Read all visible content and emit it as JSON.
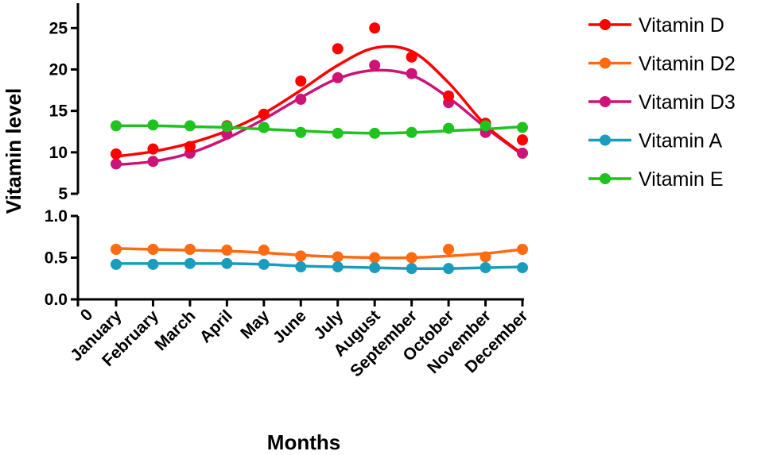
{
  "chart_data": {
    "type": "line",
    "title": "",
    "xlabel": "Months",
    "ylabel": "Vitamin level",
    "x_origin_label": "0",
    "categories": [
      "January",
      "February",
      "March",
      "April",
      "May",
      "June",
      "July",
      "August",
      "September",
      "October",
      "November",
      "December"
    ],
    "y_axis_segments": [
      {
        "name": "upper",
        "ylim": [
          5,
          28
        ],
        "ticks": [
          5,
          10,
          15,
          20,
          25
        ],
        "tick_labels": [
          "5",
          "10",
          "15",
          "20",
          "25"
        ]
      },
      {
        "name": "lower",
        "ylim": [
          0,
          1.0
        ],
        "ticks": [
          0,
          0.5,
          1.0
        ],
        "tick_labels": [
          "0.0",
          "0.5",
          "1.0"
        ]
      }
    ],
    "legend_position": "top-right",
    "series": [
      {
        "name": "Vitamin D",
        "color": "#ff0000",
        "segment": "upper",
        "values": [
          9.8,
          10.4,
          10.7,
          13.2,
          14.6,
          18.6,
          22.5,
          25.0,
          21.5,
          16.8,
          13.5,
          11.5
        ],
        "fit": [
          9.5,
          10.1,
          11.1,
          12.6,
          14.7,
          17.5,
          20.5,
          22.6,
          22.2,
          18.4,
          13.3,
          9.8
        ]
      },
      {
        "name": "Vitamin D2",
        "color": "#ff6a13",
        "segment": "lower",
        "values": [
          0.6,
          0.6,
          0.6,
          0.59,
          0.59,
          0.52,
          0.51,
          0.5,
          0.5,
          0.6,
          0.51,
          0.6
        ],
        "fit": [
          0.61,
          0.6,
          0.59,
          0.58,
          0.56,
          0.53,
          0.51,
          0.5,
          0.5,
          0.52,
          0.55,
          0.6
        ]
      },
      {
        "name": "Vitamin D3",
        "color": "#cc1377",
        "segment": "upper",
        "values": [
          8.6,
          8.9,
          9.9,
          12.2,
          13.0,
          16.4,
          19.0,
          20.5,
          19.5,
          16.0,
          12.4,
          9.9
        ],
        "fit": [
          8.5,
          8.9,
          9.9,
          11.7,
          14.0,
          16.6,
          18.9,
          19.9,
          19.3,
          16.6,
          13.0,
          9.7
        ]
      },
      {
        "name": "Vitamin A",
        "color": "#1b9cbd",
        "segment": "lower",
        "values": [
          0.42,
          0.42,
          0.43,
          0.43,
          0.42,
          0.39,
          0.39,
          0.38,
          0.37,
          0.37,
          0.38,
          0.38
        ],
        "fit": [
          0.43,
          0.43,
          0.43,
          0.43,
          0.42,
          0.4,
          0.39,
          0.38,
          0.37,
          0.37,
          0.38,
          0.39
        ]
      },
      {
        "name": "Vitamin E",
        "color": "#1fc21f",
        "segment": "upper",
        "values": [
          13.2,
          13.3,
          13.2,
          13.1,
          13.0,
          12.4,
          12.3,
          12.3,
          12.4,
          12.9,
          13.2,
          13.0
        ],
        "fit": [
          13.2,
          13.2,
          13.1,
          13.0,
          12.8,
          12.6,
          12.4,
          12.3,
          12.4,
          12.6,
          12.8,
          13.1
        ]
      }
    ],
    "legend_order": [
      "Vitamin D",
      "Vitamin D2",
      "Vitamin D3",
      "Vitamin A",
      "Vitamin E"
    ]
  }
}
